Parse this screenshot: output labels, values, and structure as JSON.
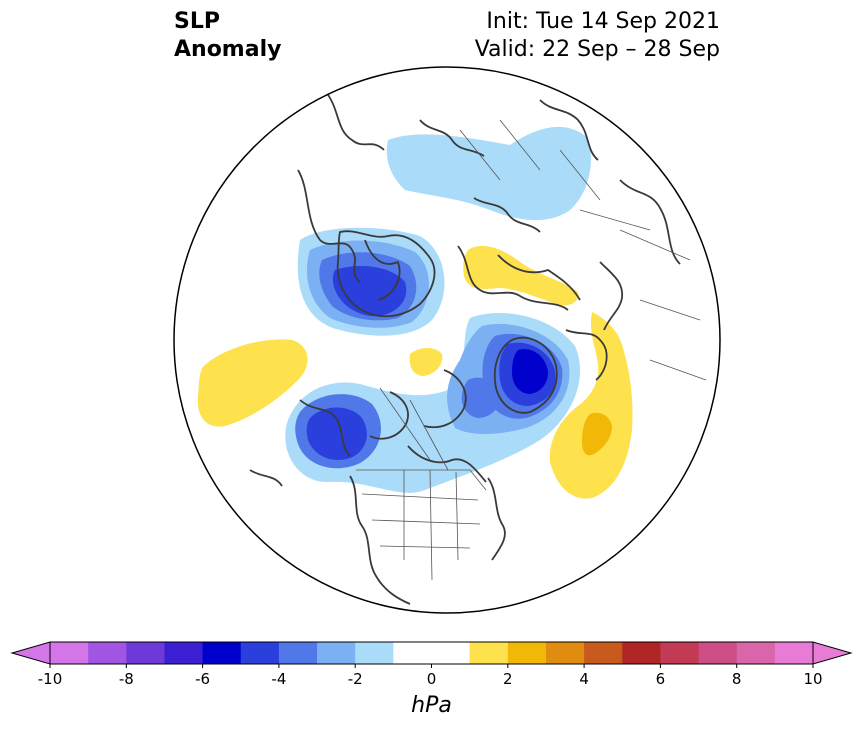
{
  "title": {
    "left_line1": "SLP",
    "left_line2": "Anomaly",
    "init": "Init: Tue 14 Sep 2021",
    "valid": "Valid: 22 Sep – 28 Sep"
  },
  "map": {
    "projection": "north-polar-stereographic",
    "region": "Northern Hemisphere",
    "features": [
      "coastlines",
      "country borders",
      "US state borders",
      "Canadian province borders"
    ]
  },
  "colorbar": {
    "unit": "hPa",
    "extend": "both",
    "levels": [
      -10,
      -9,
      -8,
      -7,
      -6,
      -5,
      -4,
      -3,
      -2,
      -1,
      1,
      2,
      3,
      4,
      5,
      6,
      7,
      8,
      9,
      10
    ],
    "ticks": [
      "-10",
      "-8",
      "-6",
      "-4",
      "-2",
      "0",
      "2",
      "4",
      "6",
      "8",
      "10"
    ],
    "colors": [
      "#d476e7",
      "#a255e3",
      "#6d3ad9",
      "#3c1fd2",
      "#0000cd",
      "#2a3fdb",
      "#5078e8",
      "#7bb0f2",
      "#aadcfa",
      "#ffffff",
      "#fee24d",
      "#f1b808",
      "#e08c10",
      "#c95a1d",
      "#b02626",
      "#c33a55",
      "#cc4e85",
      "#d966aa",
      "#e77bd6"
    ],
    "under_color": "#d476e7",
    "over_color": "#e77bd6"
  }
}
